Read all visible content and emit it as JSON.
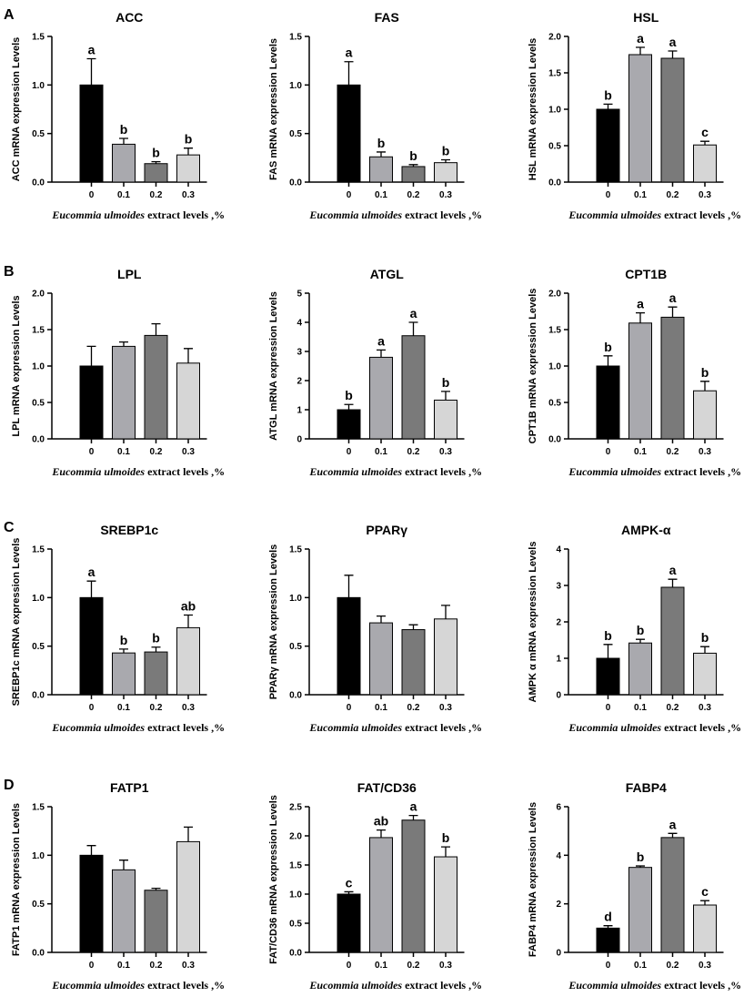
{
  "panel_letters": [
    "A",
    "B",
    "C",
    "D"
  ],
  "colors": {
    "bar_fills": [
      "#000000",
      "#a9a9ae",
      "#7a7a7a",
      "#d6d6d6"
    ],
    "axis": "#000000"
  },
  "chart_data": [
    {
      "type": "bar",
      "panel": "A",
      "title": "ACC",
      "ylabel": "ACC mRNA expression Levels",
      "xlabel_italic": "Eucommia ulmoides",
      "xlabel_rest": " extract levels ,%",
      "categories": [
        "0",
        "0.1",
        "0.2",
        "0.3"
      ],
      "values": [
        1.0,
        0.39,
        0.19,
        0.28
      ],
      "errors": [
        0.27,
        0.06,
        0.02,
        0.07
      ],
      "letters": [
        "a",
        "b",
        "b",
        "b"
      ],
      "ylim": [
        0,
        1.5
      ],
      "yticks": [
        "0.0",
        "0.5",
        "1.0",
        "1.5"
      ]
    },
    {
      "type": "bar",
      "panel": "A",
      "title": "FAS",
      "ylabel": "FAS mRNA expression Levels",
      "xlabel_italic": "Eucommia ulmoides",
      "xlabel_rest": " extract levels ,%",
      "categories": [
        "0",
        "0.1",
        "0.2",
        "0.3"
      ],
      "values": [
        1.0,
        0.26,
        0.16,
        0.2
      ],
      "errors": [
        0.24,
        0.05,
        0.02,
        0.03
      ],
      "letters": [
        "a",
        "b",
        "b",
        "b"
      ],
      "ylim": [
        0,
        1.5
      ],
      "yticks": [
        "0.0",
        "0.5",
        "1.0",
        "1.5"
      ]
    },
    {
      "type": "bar",
      "panel": "A",
      "title": "HSL",
      "ylabel": "HSL mRNA expression Levels",
      "xlabel_italic": "Eucommia ulmoides",
      "xlabel_rest": " extract levels ,%",
      "categories": [
        "0",
        "0.1",
        "0.2",
        "0.3"
      ],
      "values": [
        1.0,
        1.75,
        1.7,
        0.51
      ],
      "errors": [
        0.07,
        0.1,
        0.1,
        0.05
      ],
      "letters": [
        "b",
        "a",
        "a",
        "c"
      ],
      "ylim": [
        0,
        2.0
      ],
      "yticks": [
        "0.0",
        "0.5",
        "1.0",
        "1.5",
        "2.0"
      ]
    },
    {
      "type": "bar",
      "panel": "B",
      "title": "LPL",
      "ylabel": "LPL mRNA expression Levels",
      "xlabel_italic": "Eucommia ulmoides",
      "xlabel_rest": " extract levels ,%",
      "categories": [
        "0",
        "0.1",
        "0.2",
        "0.3"
      ],
      "values": [
        1.0,
        1.27,
        1.42,
        1.04
      ],
      "errors": [
        0.27,
        0.06,
        0.16,
        0.2
      ],
      "letters": [
        "",
        "",
        "",
        ""
      ],
      "ylim": [
        0,
        2.0
      ],
      "yticks": [
        "0.0",
        "0.5",
        "1.0",
        "1.5",
        "2.0"
      ]
    },
    {
      "type": "bar",
      "panel": "B",
      "title": "ATGL",
      "ylabel": "ATGL mRNA expression Levels",
      "xlabel_italic": "Eucommia ulmoides",
      "xlabel_rest": " extract levels ,%",
      "categories": [
        "0",
        "0.1",
        "0.2",
        "0.3"
      ],
      "values": [
        1.0,
        2.8,
        3.54,
        1.33
      ],
      "errors": [
        0.18,
        0.25,
        0.46,
        0.3
      ],
      "letters": [
        "b",
        "a",
        "a",
        "b"
      ],
      "ylim": [
        0,
        5
      ],
      "yticks": [
        "0",
        "1",
        "2",
        "3",
        "4",
        "5"
      ]
    },
    {
      "type": "bar",
      "panel": "B",
      "title": "CPT1B",
      "ylabel": "CPT1B mRNA expression Levels",
      "xlabel_italic": "Eucommia ulmoides",
      "xlabel_rest": " extract levels ,%",
      "categories": [
        "0",
        "0.1",
        "0.2",
        "0.3"
      ],
      "values": [
        1.0,
        1.59,
        1.67,
        0.66
      ],
      "errors": [
        0.14,
        0.14,
        0.14,
        0.13
      ],
      "letters": [
        "b",
        "a",
        "a",
        "b"
      ],
      "ylim": [
        0,
        2.0
      ],
      "yticks": [
        "0.0",
        "0.5",
        "1.0",
        "1.5",
        "2.0"
      ]
    },
    {
      "type": "bar",
      "panel": "C",
      "title": "SREBP1c",
      "ylabel": "SREBP1c mRNA expression Levels",
      "xlabel_italic": "Eucommia ulmoides",
      "xlabel_rest": " extract levels ,%",
      "categories": [
        "0",
        "0.1",
        "0.2",
        "0.3"
      ],
      "values": [
        1.0,
        0.43,
        0.44,
        0.69
      ],
      "errors": [
        0.17,
        0.04,
        0.05,
        0.13
      ],
      "letters": [
        "a",
        "b",
        "b",
        "ab"
      ],
      "ylim": [
        0,
        1.5
      ],
      "yticks": [
        "0.0",
        "0.5",
        "1.0",
        "1.5"
      ]
    },
    {
      "type": "bar",
      "panel": "C",
      "title": "PPARγ",
      "ylabel": "PPARγ mRNA expression Levels",
      "xlabel_italic": "Eucommia ulmoides",
      "xlabel_rest": " extract levels ,%",
      "categories": [
        "0",
        "0.1",
        "0.2",
        "0.3"
      ],
      "values": [
        1.0,
        0.74,
        0.67,
        0.78
      ],
      "errors": [
        0.23,
        0.07,
        0.05,
        0.14
      ],
      "letters": [
        "",
        "",
        "",
        ""
      ],
      "ylim": [
        0,
        1.5
      ],
      "yticks": [
        "0.0",
        "0.5",
        "1.0",
        "1.5"
      ]
    },
    {
      "type": "bar",
      "panel": "C",
      "title": "AMPK-α",
      "ylabel": "AMPK α mRNA expression Levels",
      "xlabel_italic": "Eucommia ulmoides",
      "xlabel_rest": " extract levels ,%",
      "categories": [
        "0",
        "0.1",
        "0.2",
        "0.3"
      ],
      "values": [
        1.0,
        1.42,
        2.95,
        1.14
      ],
      "errors": [
        0.38,
        0.1,
        0.22,
        0.18
      ],
      "letters": [
        "b",
        "b",
        "a",
        "b"
      ],
      "ylim": [
        0,
        4
      ],
      "yticks": [
        "0",
        "1",
        "2",
        "3",
        "4"
      ]
    },
    {
      "type": "bar",
      "panel": "D",
      "title": "FATP1",
      "ylabel": "FATP1 mRNA expression Levels",
      "xlabel_italic": "Eucommia ulmoides",
      "xlabel_rest": " extract levels ,%",
      "categories": [
        "0",
        "0.1",
        "0.2",
        "0.3"
      ],
      "values": [
        1.0,
        0.85,
        0.64,
        1.14
      ],
      "errors": [
        0.1,
        0.1,
        0.02,
        0.15
      ],
      "letters": [
        "",
        "",
        "",
        ""
      ],
      "ylim": [
        0,
        1.5
      ],
      "yticks": [
        "0.0",
        "0.5",
        "1.0",
        "1.5"
      ]
    },
    {
      "type": "bar",
      "panel": "D",
      "title": "FAT/CD36",
      "ylabel": "FAT/CD36 mRNA expression Levels",
      "xlabel_italic": "Eucommia ulmoides",
      "xlabel_rest": " extract levels ,%",
      "categories": [
        "0",
        "0.1",
        "0.2",
        "0.3"
      ],
      "values": [
        1.0,
        1.97,
        2.27,
        1.64
      ],
      "errors": [
        0.04,
        0.13,
        0.08,
        0.17
      ],
      "letters": [
        "c",
        "ab",
        "a",
        "b"
      ],
      "ylim": [
        0,
        2.5
      ],
      "yticks": [
        "0.0",
        "0.5",
        "1.0",
        "1.5",
        "2.0",
        "2.5"
      ]
    },
    {
      "type": "bar",
      "panel": "D",
      "title": "FABP4",
      "ylabel": "FABP4 mRNA expression Levels",
      "xlabel_italic": "Eucommia ulmoides",
      "xlabel_rest": " extract levels ,%",
      "categories": [
        "0",
        "0.1",
        "0.2",
        "0.3"
      ],
      "values": [
        1.0,
        3.5,
        4.73,
        1.95
      ],
      "errors": [
        0.1,
        0.06,
        0.17,
        0.18
      ],
      "letters": [
        "d",
        "b",
        "a",
        "c"
      ],
      "ylim": [
        0,
        6
      ],
      "yticks": [
        "0",
        "2",
        "4",
        "6"
      ]
    }
  ]
}
